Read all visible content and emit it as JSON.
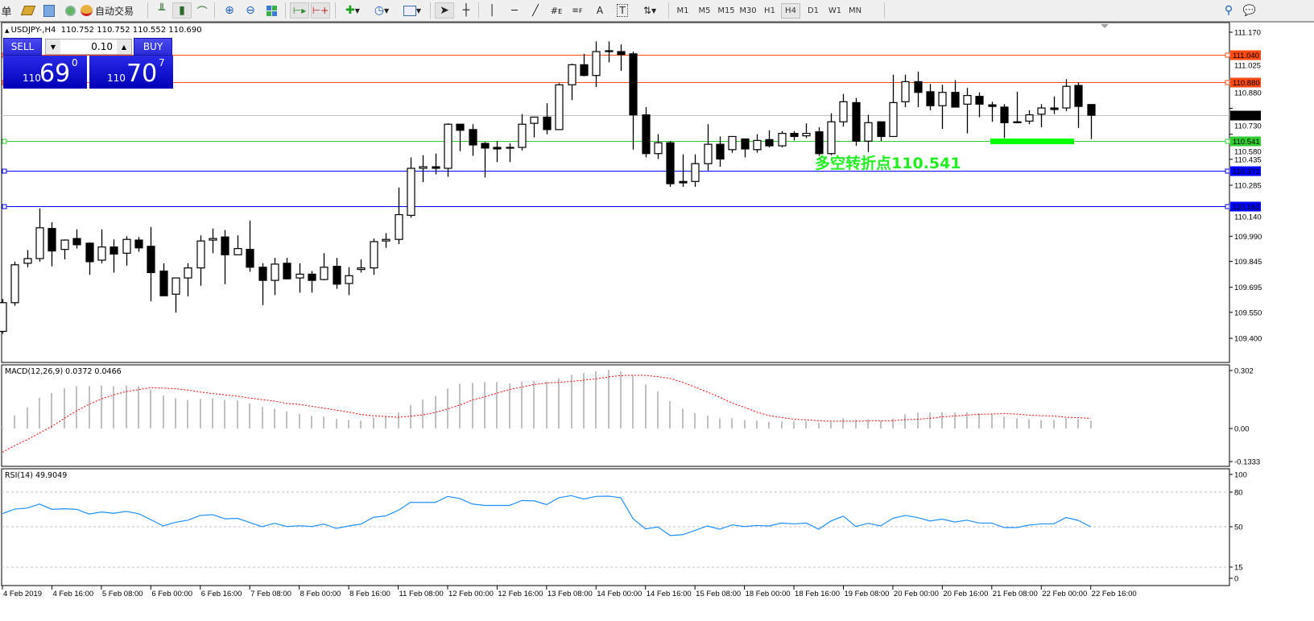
{
  "toolbar": {
    "menu_fragment": "单",
    "autotrade_label": "自动交易",
    "icons": [
      "market-watch-icon",
      "navigator-icon",
      "signals-icon",
      "autotrade-icon",
      "bar-chart-icon",
      "candlestick-icon",
      "line-chart-icon",
      "zoom-in-icon",
      "zoom-out-icon",
      "tile-windows-icon",
      "autoscroll-icon",
      "chart-shift-icon",
      "indicators-icon",
      "periods-icon",
      "templates-icon",
      "cursor-icon",
      "crosshair-icon",
      "vertical-line-icon",
      "horizontal-line-icon",
      "trendline-icon",
      "fibo-channel-icon",
      "fibo-retracement-icon",
      "text-icon",
      "text-label-icon",
      "arrows-icon",
      "search-icon",
      "chat-icon"
    ],
    "timeframes": [
      "M1",
      "M5",
      "M15",
      "M30",
      "H1",
      "H4",
      "D1",
      "W1",
      "MN"
    ],
    "active_timeframe": "H4"
  },
  "chart": {
    "title": "USDJPY-,H4  110.752 110.752 110.552 110.690",
    "trade_panel": {
      "sell_label": "SELL",
      "buy_label": "BUY",
      "lot": "0.10",
      "sell_prefix": "110",
      "sell_big": "69",
      "sell_sup": "0",
      "buy_prefix": "110",
      "buy_big": "70",
      "buy_sup": "7",
      "color": "#2a2ad8"
    },
    "annotation": "多空转折点110.541",
    "annotation_color": "#22ee22"
  },
  "chart_data": [
    {
      "type": "candlestick",
      "symbol": "USDJPY-",
      "timeframe": "H4",
      "ylim": [
        109.4,
        111.17
      ],
      "y_ticks": [
        "111.170",
        "111.025",
        "110.880",
        "110.730",
        "110.580",
        "110.435",
        "110.285",
        "110.140",
        "109.990",
        "109.845",
        "109.695",
        "109.550",
        "109.400"
      ],
      "x_ticks": [
        "4 Feb 2019",
        "4 Feb 16:00",
        "5 Feb 08:00",
        "6 Feb 00:00",
        "6 Feb 16:00",
        "7 Feb 08:00",
        "8 Feb 00:00",
        "8 Feb 16:00",
        "11 Feb 08:00",
        "12 Feb 00:00",
        "12 Feb 16:00",
        "13 Feb 08:00",
        "14 Feb 00:00",
        "14 Feb 16:00",
        "15 Feb 08:00",
        "18 Feb 00:00",
        "18 Feb 16:00",
        "19 Feb 08:00",
        "20 Feb 00:00",
        "20 Feb 16:00",
        "21 Feb 08:00",
        "22 Feb 00:00",
        "22 Feb 16:00"
      ],
      "levels": [
        {
          "price": "111.040",
          "color": "#ff4a10"
        },
        {
          "price": "110.880",
          "color": "#ff4a10"
        },
        {
          "price": "110.690",
          "color": "#c0c0c0",
          "tag_color": "#000000"
        },
        {
          "price": "110.541",
          "color": "#32cd32"
        },
        {
          "price": "110.371",
          "color": "#0000ff"
        },
        {
          "price": "110.162",
          "color": "#0000ff"
        }
      ],
      "ohlc": [
        [
          109.44,
          109.628,
          109.427,
          109.606
        ],
        [
          109.606,
          109.843,
          109.588,
          109.825
        ],
        [
          109.834,
          109.91,
          109.811,
          109.861
        ],
        [
          109.861,
          110.151,
          109.843,
          110.039
        ],
        [
          110.035,
          110.071,
          109.816,
          109.905
        ],
        [
          109.914,
          109.972,
          109.856,
          109.968
        ],
        [
          109.977,
          110.03,
          109.919,
          109.941
        ],
        [
          109.95,
          109.954,
          109.767,
          109.843
        ],
        [
          109.852,
          110.03,
          109.834,
          109.928
        ],
        [
          109.928,
          109.972,
          109.78,
          109.887
        ],
        [
          109.892,
          109.99,
          109.82,
          109.972
        ],
        [
          109.968,
          109.986,
          109.901,
          109.923
        ],
        [
          109.932,
          110.044,
          109.615,
          109.78
        ],
        [
          109.789,
          109.834,
          109.646,
          109.646
        ],
        [
          109.655,
          109.749,
          109.548,
          109.749
        ],
        [
          109.749,
          109.834,
          109.642,
          109.807
        ],
        [
          109.807,
          109.995,
          109.704,
          109.963
        ],
        [
          109.968,
          110.035,
          109.892,
          109.977
        ],
        [
          109.986,
          110.026,
          109.713,
          109.883
        ],
        [
          109.883,
          109.995,
          109.883,
          109.919
        ],
        [
          109.914,
          110.08,
          109.785,
          109.811
        ],
        [
          109.811,
          109.834,
          109.592,
          109.735
        ],
        [
          109.735,
          109.865,
          109.65,
          109.829
        ],
        [
          109.834,
          109.865,
          109.74,
          109.744
        ],
        [
          109.749,
          109.834,
          109.664,
          109.771
        ],
        [
          109.771,
          109.789,
          109.664,
          109.735
        ],
        [
          109.74,
          109.892,
          109.735,
          109.811
        ],
        [
          109.816,
          109.865,
          109.686,
          109.713
        ],
        [
          109.717,
          109.811,
          109.65,
          109.762
        ],
        [
          109.798,
          109.856,
          109.78,
          109.807
        ],
        [
          109.807,
          109.977,
          109.767,
          109.959
        ],
        [
          109.963,
          110.008,
          109.923,
          109.972
        ],
        [
          109.972,
          110.272,
          109.945,
          110.115
        ],
        [
          110.111,
          110.446,
          110.097,
          110.383
        ],
        [
          110.383,
          110.459,
          110.303,
          110.392
        ],
        [
          110.392,
          110.468,
          110.348,
          110.383
        ],
        [
          110.383,
          110.643,
          110.334,
          110.638
        ],
        [
          110.638,
          110.638,
          110.482,
          110.603
        ],
        [
          110.607,
          110.638,
          110.455,
          110.518
        ],
        [
          110.527,
          110.535,
          110.33,
          110.5
        ],
        [
          110.504,
          110.54,
          110.419,
          110.495
        ],
        [
          110.5,
          110.527,
          110.419,
          110.504
        ],
        [
          110.504,
          110.696,
          110.486,
          110.638
        ],
        [
          110.643,
          110.679,
          110.562,
          110.679
        ],
        [
          110.679,
          110.759,
          110.58,
          110.607
        ],
        [
          110.607,
          110.875,
          110.607,
          110.866
        ],
        [
          110.866,
          110.987,
          110.777,
          110.982
        ],
        [
          110.982,
          111.045,
          110.915,
          110.92
        ],
        [
          110.92,
          111.117,
          110.853,
          111.058
        ],
        [
          111.063,
          111.117,
          110.996,
          111.058
        ],
        [
          111.058,
          111.099,
          110.947,
          111.041
        ],
        [
          111.045,
          111.058,
          110.491,
          110.692
        ],
        [
          110.692,
          110.737,
          110.446,
          110.468
        ],
        [
          110.468,
          110.58,
          110.437,
          110.531
        ],
        [
          110.531,
          110.54,
          110.276,
          110.294
        ],
        [
          110.307,
          110.464,
          110.276,
          110.299
        ],
        [
          110.307,
          110.464,
          110.276,
          110.41
        ],
        [
          110.41,
          110.638,
          110.37,
          110.522
        ],
        [
          110.522,
          110.567,
          110.392,
          110.437
        ],
        [
          110.491,
          110.567,
          110.473,
          110.567
        ],
        [
          110.553,
          110.553,
          110.446,
          110.495
        ],
        [
          110.491,
          110.58,
          110.473,
          110.544
        ],
        [
          110.549,
          110.603,
          110.504,
          110.513
        ],
        [
          110.513,
          110.598,
          110.504,
          110.585
        ],
        [
          110.585,
          110.598,
          110.544,
          110.567
        ],
        [
          110.571,
          110.643,
          110.558,
          110.585
        ],
        [
          110.594,
          110.62,
          110.455,
          110.468
        ],
        [
          110.468,
          110.701,
          110.459,
          110.652
        ],
        [
          110.652,
          110.813,
          110.625,
          110.768
        ],
        [
          110.763,
          110.79,
          110.513,
          110.54
        ],
        [
          110.54,
          110.692,
          110.477,
          110.647
        ],
        [
          110.652,
          110.652,
          110.54,
          110.567
        ],
        [
          110.567,
          110.924,
          110.567,
          110.763
        ],
        [
          110.768,
          110.924,
          110.737,
          110.884
        ],
        [
          110.884,
          110.942,
          110.737,
          110.822
        ],
        [
          110.826,
          110.871,
          110.719,
          110.745
        ],
        [
          110.745,
          110.866,
          110.611,
          110.822
        ],
        [
          110.822,
          110.893,
          110.737,
          110.737
        ],
        [
          110.754,
          110.848,
          110.585,
          110.804
        ],
        [
          110.799,
          110.822,
          110.679,
          110.754
        ],
        [
          110.75,
          110.768,
          110.652,
          110.741
        ],
        [
          110.737,
          110.754,
          110.558,
          110.647
        ],
        [
          110.647,
          110.826,
          110.643,
          110.652
        ],
        [
          110.656,
          110.719,
          110.638,
          110.692
        ],
        [
          110.696,
          110.754,
          110.62,
          110.732
        ],
        [
          110.732,
          110.799,
          110.696,
          110.723
        ],
        [
          110.732,
          110.898,
          110.714,
          110.857
        ],
        [
          110.862,
          110.88,
          110.616,
          110.741
        ],
        [
          110.752,
          110.752,
          110.552,
          110.69
        ]
      ]
    },
    {
      "type": "bar",
      "title": "MACD(12,26,9) 0.0372 0.0466",
      "y_ticks": [
        "0.302",
        "0.00",
        "-0.1333"
      ],
      "histogram_color": "#c0c0c0",
      "signal_color": "#ff0000",
      "histogram": [
        0.012,
        0.061,
        0.098,
        0.143,
        0.164,
        0.186,
        0.196,
        0.196,
        0.199,
        0.196,
        0.199,
        0.196,
        0.18,
        0.153,
        0.14,
        0.132,
        0.137,
        0.14,
        0.132,
        0.13,
        0.116,
        0.1,
        0.092,
        0.079,
        0.068,
        0.058,
        0.055,
        0.044,
        0.039,
        0.036,
        0.05,
        0.058,
        0.074,
        0.108,
        0.135,
        0.151,
        0.185,
        0.207,
        0.212,
        0.215,
        0.215,
        0.209,
        0.217,
        0.22,
        0.217,
        0.233,
        0.249,
        0.257,
        0.265,
        0.272,
        0.265,
        0.247,
        0.204,
        0.172,
        0.127,
        0.092,
        0.071,
        0.06,
        0.047,
        0.047,
        0.039,
        0.036,
        0.031,
        0.034,
        0.034,
        0.034,
        0.026,
        0.031,
        0.047,
        0.039,
        0.042,
        0.036,
        0.047,
        0.066,
        0.074,
        0.074,
        0.076,
        0.074,
        0.076,
        0.071,
        0.066,
        0.055,
        0.047,
        0.042,
        0.039,
        0.039,
        0.047,
        0.045,
        0.0372
      ],
      "signal": [
        -0.11,
        -0.079,
        -0.052,
        -0.021,
        0.01,
        0.047,
        0.082,
        0.112,
        0.137,
        0.156,
        0.171,
        0.18,
        0.189,
        0.187,
        0.184,
        0.178,
        0.169,
        0.162,
        0.156,
        0.15,
        0.141,
        0.134,
        0.127,
        0.116,
        0.112,
        0.103,
        0.094,
        0.085,
        0.076,
        0.065,
        0.059,
        0.056,
        0.052,
        0.057,
        0.063,
        0.074,
        0.091,
        0.109,
        0.132,
        0.147,
        0.164,
        0.18,
        0.192,
        0.204,
        0.211,
        0.214,
        0.218,
        0.224,
        0.23,
        0.239,
        0.245,
        0.247,
        0.246,
        0.24,
        0.232,
        0.214,
        0.192,
        0.169,
        0.145,
        0.118,
        0.098,
        0.076,
        0.06,
        0.051,
        0.043,
        0.04,
        0.036,
        0.034,
        0.034,
        0.034,
        0.035,
        0.036,
        0.036,
        0.041,
        0.043,
        0.047,
        0.054,
        0.058,
        0.062,
        0.066,
        0.067,
        0.069,
        0.067,
        0.062,
        0.059,
        0.058,
        0.052,
        0.05,
        0.0466
      ]
    },
    {
      "type": "line",
      "title": "RSI(14) 49.9049",
      "y_ticks": [
        "100",
        "80",
        "50",
        "15",
        "0"
      ],
      "levels": [
        80,
        50,
        15
      ],
      "line_color": "#1e90ff",
      "values": [
        61.4,
        65.3,
        66.2,
        69.7,
        65.1,
        65.6,
        65.1,
        61.0,
        62.8,
        61.7,
        63.3,
        61.4,
        56.2,
        50.7,
        53.9,
        55.7,
        59.8,
        60.5,
        56.9,
        57.3,
        53.7,
        50.0,
        53.0,
        50.2,
        50.9,
        50.2,
        52.3,
        48.6,
        50.7,
        52.3,
        58.2,
        59.4,
        64.2,
        71.1,
        71.1,
        71.1,
        76.3,
        74.5,
        69.7,
        68.5,
        68.5,
        68.5,
        72.7,
        72.5,
        69.2,
        75.2,
        77.0,
        74.0,
        76.3,
        76.5,
        75.2,
        56.9,
        48.2,
        49.8,
        42.4,
        43.1,
        46.8,
        50.7,
        47.9,
        51.6,
        50.2,
        51.1,
        50.7,
        53.2,
        52.5,
        53.2,
        47.9,
        55.0,
        59.2,
        50.2,
        53.0,
        50.7,
        57.3,
        59.8,
        58.0,
        55.0,
        56.6,
        54.1,
        55.7,
        53.2,
        53.2,
        49.3,
        49.3,
        51.4,
        52.5,
        52.5,
        58.0,
        55.5,
        49.9049
      ]
    }
  ]
}
